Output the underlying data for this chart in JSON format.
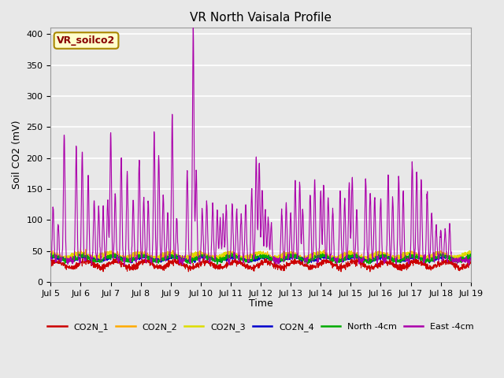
{
  "title": "VR North Vaisala Profile",
  "ylabel": "Soil CO2 (mV)",
  "xlabel": "Time",
  "annotation": "VR_soilco2",
  "ylim": [
    0,
    410
  ],
  "yticks": [
    0,
    50,
    100,
    150,
    200,
    250,
    300,
    350,
    400
  ],
  "xtick_labels": [
    "Jul 5",
    "Jul 6",
    "Jul 7",
    "Jul 8",
    "Jul 9",
    "Jul 10",
    "Jul 11",
    "Jul 12",
    "Jul 13",
    "Jul 14",
    "Jul 15",
    "Jul 16",
    "Jul 17",
    "Jul 18",
    "Jul 19"
  ],
  "background_color": "#e8e8e8",
  "plot_bg_color": "#e8e8e8",
  "grid_color": "#ffffff",
  "series_colors": {
    "CO2N_1": "#cc0000",
    "CO2N_2": "#ffaa00",
    "CO2N_3": "#dddd00",
    "CO2N_4": "#0000cc",
    "North_4cm": "#00aa00",
    "East_4cm": "#aa00aa"
  },
  "legend_labels": [
    "CO2N_1",
    "CO2N_2",
    "CO2N_3",
    "CO2N_4",
    "North -4cm",
    "East -4cm"
  ],
  "spike_positions": [
    0.08,
    0.25,
    0.45,
    0.85,
    1.05,
    1.25,
    1.45,
    1.6,
    1.75,
    1.9,
    2.0,
    2.15,
    2.35,
    2.55,
    2.75,
    2.95,
    3.1,
    3.25,
    3.45,
    3.6,
    3.75,
    3.9,
    4.05,
    4.2,
    4.55,
    4.75,
    4.85,
    5.05,
    5.2,
    5.4,
    5.55,
    5.65,
    5.75,
    5.85,
    6.05,
    6.2,
    6.35,
    6.5,
    6.7,
    6.85,
    6.95,
    7.05,
    7.15,
    7.25,
    7.35,
    7.7,
    7.85,
    8.0,
    8.15,
    8.3,
    8.4,
    8.65,
    8.8,
    9.0,
    9.1,
    9.25,
    9.4,
    9.65,
    9.8,
    9.95,
    10.05,
    10.2,
    10.5,
    10.65,
    10.8,
    11.0,
    11.25,
    11.4,
    11.6,
    11.75,
    12.05,
    12.2,
    12.35,
    12.55,
    12.7,
    12.85,
    13.0,
    13.15,
    13.3
  ],
  "spike_heights": [
    85,
    60,
    205,
    185,
    175,
    135,
    95,
    85,
    80,
    95,
    205,
    110,
    165,
    140,
    100,
    165,
    100,
    95,
    205,
    170,
    105,
    75,
    235,
    70,
    145,
    380,
    145,
    85,
    95,
    90,
    80,
    65,
    75,
    85,
    95,
    80,
    75,
    90,
    115,
    170,
    160,
    115,
    80,
    70,
    60,
    80,
    90,
    75,
    130,
    125,
    80,
    110,
    130,
    110,
    125,
    100,
    80,
    110,
    100,
    125,
    135,
    80,
    130,
    110,
    100,
    100,
    135,
    100,
    135,
    110,
    160,
    145,
    130,
    110,
    80,
    55,
    50,
    50,
    55
  ]
}
